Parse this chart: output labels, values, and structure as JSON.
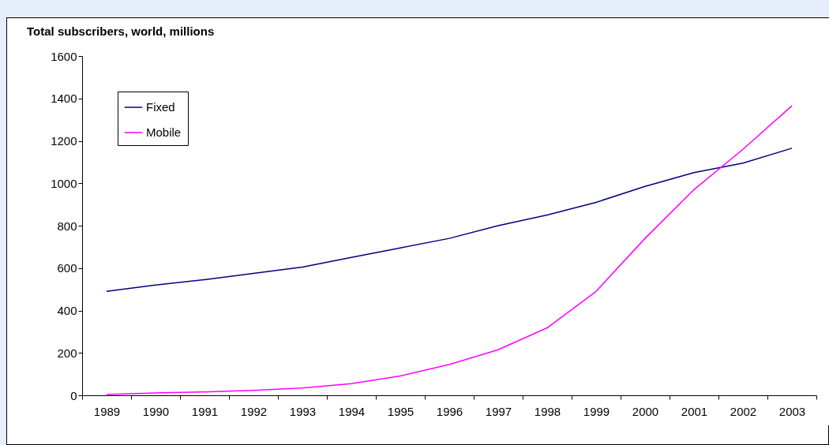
{
  "chart_data": {
    "type": "line",
    "title": "Total subscribers, world, millions",
    "categories": [
      "1989",
      "1990",
      "1991",
      "1992",
      "1993",
      "1994",
      "1995",
      "1996",
      "1997",
      "1998",
      "1999",
      "2000",
      "2001",
      "2002",
      "2003"
    ],
    "series": [
      {
        "name": "Fixed",
        "color": "#000080",
        "values": [
          490,
          520,
          545,
          575,
          605,
          650,
          695,
          740,
          800,
          850,
          910,
          985,
          1050,
          1095,
          1165
        ]
      },
      {
        "name": "Mobile",
        "color": "#ff00ff",
        "values": [
          4,
          11,
          16,
          23,
          34,
          55,
          91,
          145,
          215,
          318,
          490,
          740,
          970,
          1160,
          1365
        ]
      }
    ],
    "ylim": [
      0,
      1600
    ],
    "yticks": [
      0,
      200,
      400,
      600,
      800,
      1000,
      1200,
      1400,
      1600
    ],
    "grid": false,
    "legend": "top left",
    "marker": "none",
    "line_style": "solid"
  }
}
